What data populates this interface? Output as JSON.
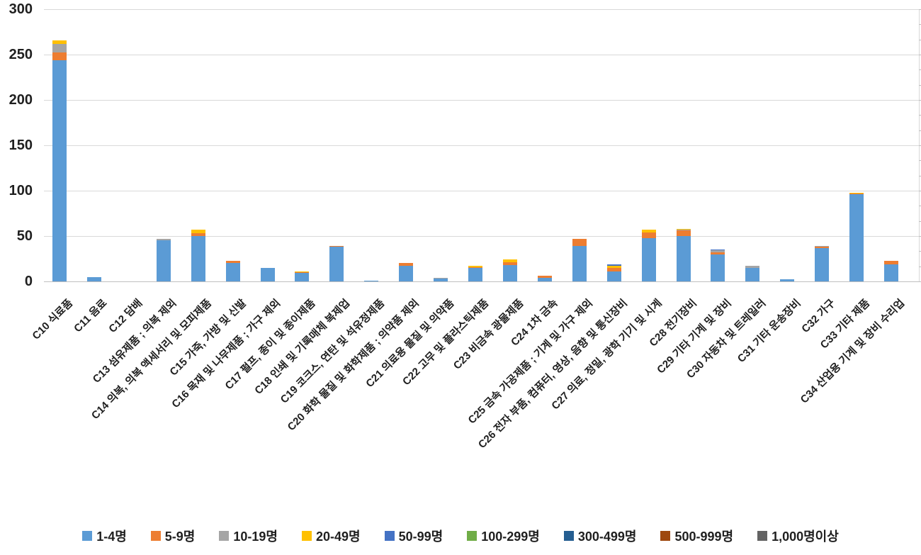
{
  "chart_data": {
    "type": "bar",
    "stacked": true,
    "title": "",
    "xlabel": "",
    "ylabel": "",
    "ylim": [
      0,
      300
    ],
    "yticks": [
      0,
      50,
      100,
      150,
      200,
      250,
      300
    ],
    "grid": true,
    "legend_position": "bottom",
    "categories": [
      "C10 식료품",
      "C11 음료",
      "C12 담배",
      "C13 섬유제품 ; 의복 제외",
      "C14 의복, 의복 액세서리 및 모피제품",
      "C15 가죽, 가방 및 신발",
      "C16 목재 및 나무제품 ; 가구 제외",
      "C17 펄프, 종이 및 종이제품",
      "C18 인쇄 및 기록매체 복제업",
      "C19 코크스, 연탄 및 석유정제품",
      "C20 화학 물질 및 화학제품 ; 의약품 제외",
      "C21 의료용 물질 및 의약품",
      "C22 고무 및 플라스틱제품",
      "C23 비금속 광물제품",
      "C24 1차 금속",
      "C25 금속 가공제품 ; 기계 및 가구 제외",
      "C26 전자 부품, 컴퓨터, 영상, 음향 및 통신장비",
      "C27 의료, 정밀, 광학 기기 및 시계",
      "C28 전기장비",
      "C29 기타 기계 및 장비",
      "C30 자동차 및 트레일러",
      "C31 기타 운송장비",
      "C32 가구",
      "C33 기타 제품",
      "C34 산업용 기계 및 장비 수리업"
    ],
    "series": [
      {
        "name": "1-4명",
        "color": "#5B9BD5",
        "values": [
          244,
          5,
          0,
          45,
          50,
          20,
          15,
          9,
          38,
          1,
          17,
          3,
          15,
          18,
          4,
          39,
          11,
          48,
          50,
          30,
          15,
          2,
          37,
          96,
          19
        ]
      },
      {
        "name": "5-9명",
        "color": "#ED7D31",
        "values": [
          8,
          0,
          0,
          0,
          3,
          3,
          0,
          1,
          1,
          0,
          3,
          0,
          1,
          3,
          2,
          8,
          4,
          6,
          6,
          2,
          0,
          0,
          1,
          1,
          4
        ]
      },
      {
        "name": "10-19명",
        "color": "#A5A5A5",
        "values": [
          10,
          0,
          0,
          2,
          0,
          0,
          0,
          0,
          0,
          0,
          0,
          1,
          0,
          0,
          0,
          0,
          0,
          0,
          1,
          2,
          2,
          0,
          1,
          0,
          0
        ]
      },
      {
        "name": "20-49명",
        "color": "#FFC000",
        "values": [
          4,
          0,
          0,
          0,
          4,
          0,
          0,
          1,
          0,
          0,
          0,
          0,
          1,
          3,
          0,
          0,
          2,
          3,
          1,
          0,
          0,
          0,
          0,
          1,
          0
        ]
      },
      {
        "name": "50-99명",
        "color": "#4472C4",
        "values": [
          0,
          0,
          0,
          0,
          0,
          0,
          0,
          0,
          0,
          0,
          0,
          0,
          0,
          0,
          0,
          0,
          2,
          0,
          0,
          1,
          0,
          0,
          0,
          0,
          0
        ]
      },
      {
        "name": "100-299명",
        "color": "#70AD47",
        "values": [
          0,
          0,
          0,
          0,
          0,
          0,
          0,
          0,
          0,
          0,
          0,
          0,
          0,
          0,
          0,
          0,
          0,
          0,
          0,
          0,
          0,
          0,
          0,
          0,
          0
        ]
      },
      {
        "name": "300-499명",
        "color": "#255E91",
        "values": [
          0,
          0,
          0,
          0,
          0,
          0,
          0,
          0,
          0,
          0,
          0,
          0,
          0,
          0,
          0,
          0,
          0,
          0,
          0,
          0,
          0,
          0,
          0,
          0,
          0
        ]
      },
      {
        "name": "500-999명",
        "color": "#9E480E",
        "values": [
          0,
          0,
          0,
          0,
          0,
          0,
          0,
          0,
          0,
          0,
          0,
          0,
          0,
          0,
          0,
          0,
          0,
          0,
          0,
          0,
          0,
          0,
          0,
          0,
          0
        ]
      },
      {
        "name": "1,000명이상",
        "color": "#636363",
        "values": [
          0,
          0,
          0,
          0,
          0,
          0,
          0,
          0,
          0,
          0,
          0,
          0,
          0,
          0,
          0,
          0,
          0,
          0,
          0,
          0,
          0,
          0,
          0,
          0,
          0
        ]
      }
    ]
  }
}
